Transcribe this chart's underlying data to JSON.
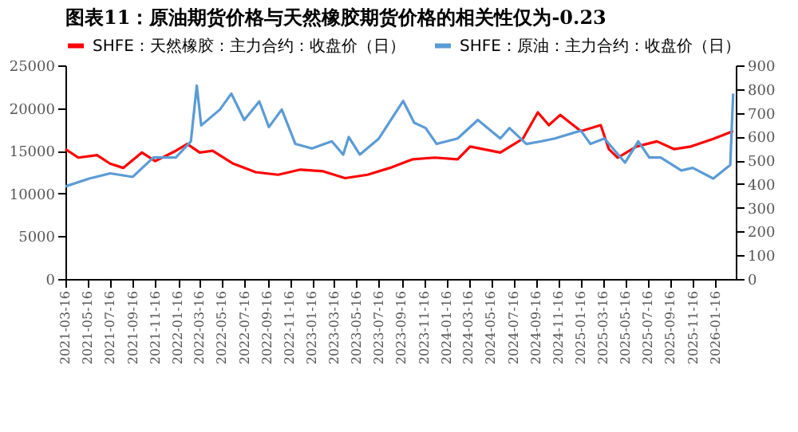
{
  "chart_data": {
    "type": "line",
    "title": "图表11：原油期货价格与天然橡胶期货价格的相关性仅为-0.23",
    "x": [
      "2021-03-16",
      "2021-04-20",
      "2021-06-10",
      "2021-07-15",
      "2021-08-20",
      "2021-10-10",
      "2021-11-15",
      "2022-01-10",
      "2022-02-10",
      "2022-03-16",
      "2022-04-20",
      "2022-06-15",
      "2022-08-15",
      "2022-10-15",
      "2022-12-15",
      "2023-02-15",
      "2023-04-15",
      "2023-06-15",
      "2023-08-15",
      "2023-10-15",
      "2023-12-15",
      "2024-02-15",
      "2024-03-20",
      "2024-06-10",
      "2024-08-10",
      "2024-09-20",
      "2024-10-20",
      "2024-11-20",
      "2025-01-15",
      "2025-03-10",
      "2025-04-01",
      "2025-04-25",
      "2025-06-15",
      "2025-08-10",
      "2025-09-25",
      "2025-11-10",
      "2026-01-10",
      "2026-03-05"
    ],
    "series": [
      {
        "name": "SHFE：天然橡胶：主力合约：收盘价（日）",
        "color": "#ff0000",
        "axis": "y",
        "values": [
          15200,
          14200,
          14500,
          13500,
          13000,
          14800,
          13800,
          15000,
          15800,
          14800,
          15000,
          13500,
          12500,
          12200,
          12800,
          12600,
          11800,
          12200,
          13000,
          14000,
          14200,
          14000,
          15500,
          14800,
          16400,
          19500,
          18000,
          19200,
          17300,
          18000,
          15200,
          14200,
          15500,
          16100,
          15200,
          15500,
          16400,
          17300
        ]
      },
      {
        "name": "SHFE：原油：主力合约：收盘价（日）",
        "color": "#5b9bd5",
        "axis": "y2",
        "x": [
          "2021-03-16",
          "2021-05-20",
          "2021-07-16",
          "2021-09-15",
          "2021-11-10",
          "2022-01-10",
          "2022-02-20",
          "2022-03-08",
          "2022-03-20",
          "2022-05-10",
          "2022-06-10",
          "2022-07-15",
          "2022-08-25",
          "2022-09-20",
          "2022-10-25",
          "2022-12-01",
          "2023-01-15",
          "2023-03-10",
          "2023-04-10",
          "2023-04-25",
          "2023-05-25",
          "2023-07-15",
          "2023-09-20",
          "2023-10-20",
          "2023-11-20",
          "2023-12-20",
          "2024-02-15",
          "2024-04-10",
          "2024-06-10",
          "2024-07-05",
          "2024-08-20",
          "2024-09-30",
          "2024-11-05",
          "2025-01-15",
          "2025-02-10",
          "2025-03-20",
          "2025-05-15",
          "2025-06-20",
          "2025-07-20",
          "2025-08-20",
          "2025-10-15",
          "2025-11-15",
          "2026-01-10",
          "2026-02-25",
          "2026-03-05"
        ],
        "values": [
          390,
          423,
          445,
          430,
          512,
          512,
          580,
          815,
          647,
          714,
          781,
          670,
          748,
          640,
          714,
          569,
          550,
          580,
          524,
          598,
          524,
          590,
          750,
          658,
          636,
          569,
          592,
          670,
          592,
          636,
          569,
          580,
          592,
          625,
          569,
          592,
          490,
          580,
          512,
          512,
          457,
          468,
          423,
          480,
          781
        ]
      }
    ],
    "xlim": [
      "2021-03-16",
      "2026-03-12"
    ],
    "xticks": [
      "2021-03-16",
      "2021-05-16",
      "2021-07-16",
      "2021-09-16",
      "2021-11-16",
      "2022-01-16",
      "2022-03-16",
      "2022-05-16",
      "2022-07-16",
      "2022-09-16",
      "2022-11-16",
      "2023-01-16",
      "2023-03-16",
      "2023-05-16",
      "2023-07-16",
      "2023-09-16",
      "2023-11-16",
      "2024-01-16",
      "2024-03-16",
      "2024-05-16",
      "2024-07-16",
      "2024-09-16",
      "2024-11-16",
      "2025-01-16",
      "2025-03-16",
      "2025-05-16",
      "2025-07-16",
      "2025-09-16",
      "2025-11-16",
      "2026-01-16"
    ],
    "ylim": [
      0,
      25000
    ],
    "yticks": [
      0,
      5000,
      10000,
      15000,
      20000,
      25000
    ],
    "y2lim": [
      0,
      900
    ],
    "y2ticks": [
      0,
      100,
      200,
      300,
      400,
      500,
      600,
      700,
      800,
      900
    ],
    "legend": "top",
    "grid": false,
    "line_style": "solid",
    "marker": "none"
  }
}
